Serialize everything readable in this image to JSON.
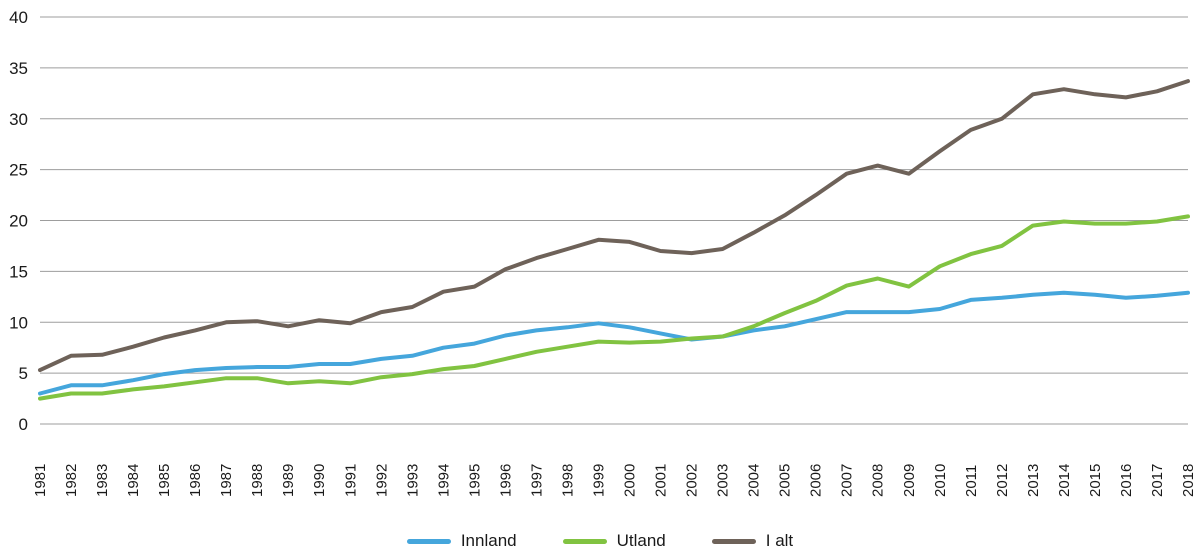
{
  "chart_data": {
    "type": "line",
    "title": "",
    "xlabel": "",
    "ylabel": "",
    "ylim": [
      0,
      40
    ],
    "y_ticks": [
      0,
      5,
      10,
      15,
      20,
      25,
      30,
      35,
      40
    ],
    "grid": true,
    "legend_position": "bottom-center",
    "categories": [
      "1981",
      "1982",
      "1983",
      "1984",
      "1985",
      "1986",
      "1987",
      "1988",
      "1989",
      "1990",
      "1991",
      "1992",
      "1993",
      "1994",
      "1995",
      "1996",
      "1997",
      "1998",
      "1999",
      "2000",
      "2001",
      "2002",
      "2003",
      "2004",
      "2005",
      "2006",
      "2007",
      "2008",
      "2009",
      "2010",
      "2011",
      "2012",
      "2013",
      "2014",
      "2015",
      "2016",
      "2017",
      "2018"
    ],
    "series": [
      {
        "name": "Innland",
        "color": "#45a6dc",
        "values": [
          3.0,
          3.8,
          3.8,
          4.3,
          4.9,
          5.3,
          5.5,
          5.6,
          5.6,
          5.9,
          5.9,
          6.4,
          6.7,
          7.5,
          7.9,
          8.7,
          9.2,
          9.5,
          9.9,
          9.5,
          8.9,
          8.3,
          8.6,
          9.2,
          9.6,
          10.3,
          11.0,
          11.0,
          11.0,
          11.3,
          12.2,
          12.4,
          12.7,
          12.9,
          12.7,
          12.4,
          12.6,
          12.9
        ]
      },
      {
        "name": "Utland",
        "color": "#81c341",
        "values": [
          2.5,
          3.0,
          3.0,
          3.4,
          3.7,
          4.1,
          4.5,
          4.5,
          4.0,
          4.2,
          4.0,
          4.6,
          4.9,
          5.4,
          5.7,
          6.4,
          7.1,
          7.6,
          8.1,
          8.0,
          8.1,
          8.4,
          8.6,
          9.6,
          10.9,
          12.1,
          13.6,
          14.3,
          13.5,
          15.5,
          16.7,
          17.5,
          19.5,
          19.9,
          19.7,
          19.7,
          19.9,
          20.4
        ]
      },
      {
        "name": "I alt",
        "color": "#6e6259",
        "values": [
          5.3,
          6.7,
          6.8,
          7.6,
          8.5,
          9.2,
          10.0,
          10.1,
          9.6,
          10.2,
          9.9,
          11.0,
          11.5,
          13.0,
          13.5,
          15.2,
          16.3,
          17.2,
          18.1,
          17.9,
          17.0,
          16.8,
          17.2,
          18.8,
          20.5,
          22.5,
          24.6,
          25.4,
          24.6,
          26.8,
          28.9,
          30.0,
          32.4,
          32.9,
          32.4,
          32.1,
          32.7,
          33.7
        ]
      }
    ]
  },
  "legend": {
    "items": [
      {
        "label": "Innland"
      },
      {
        "label": "Utland"
      },
      {
        "label": "I alt"
      }
    ]
  },
  "style": {
    "grid_color": "#9d9d9d",
    "line_width": 4
  }
}
